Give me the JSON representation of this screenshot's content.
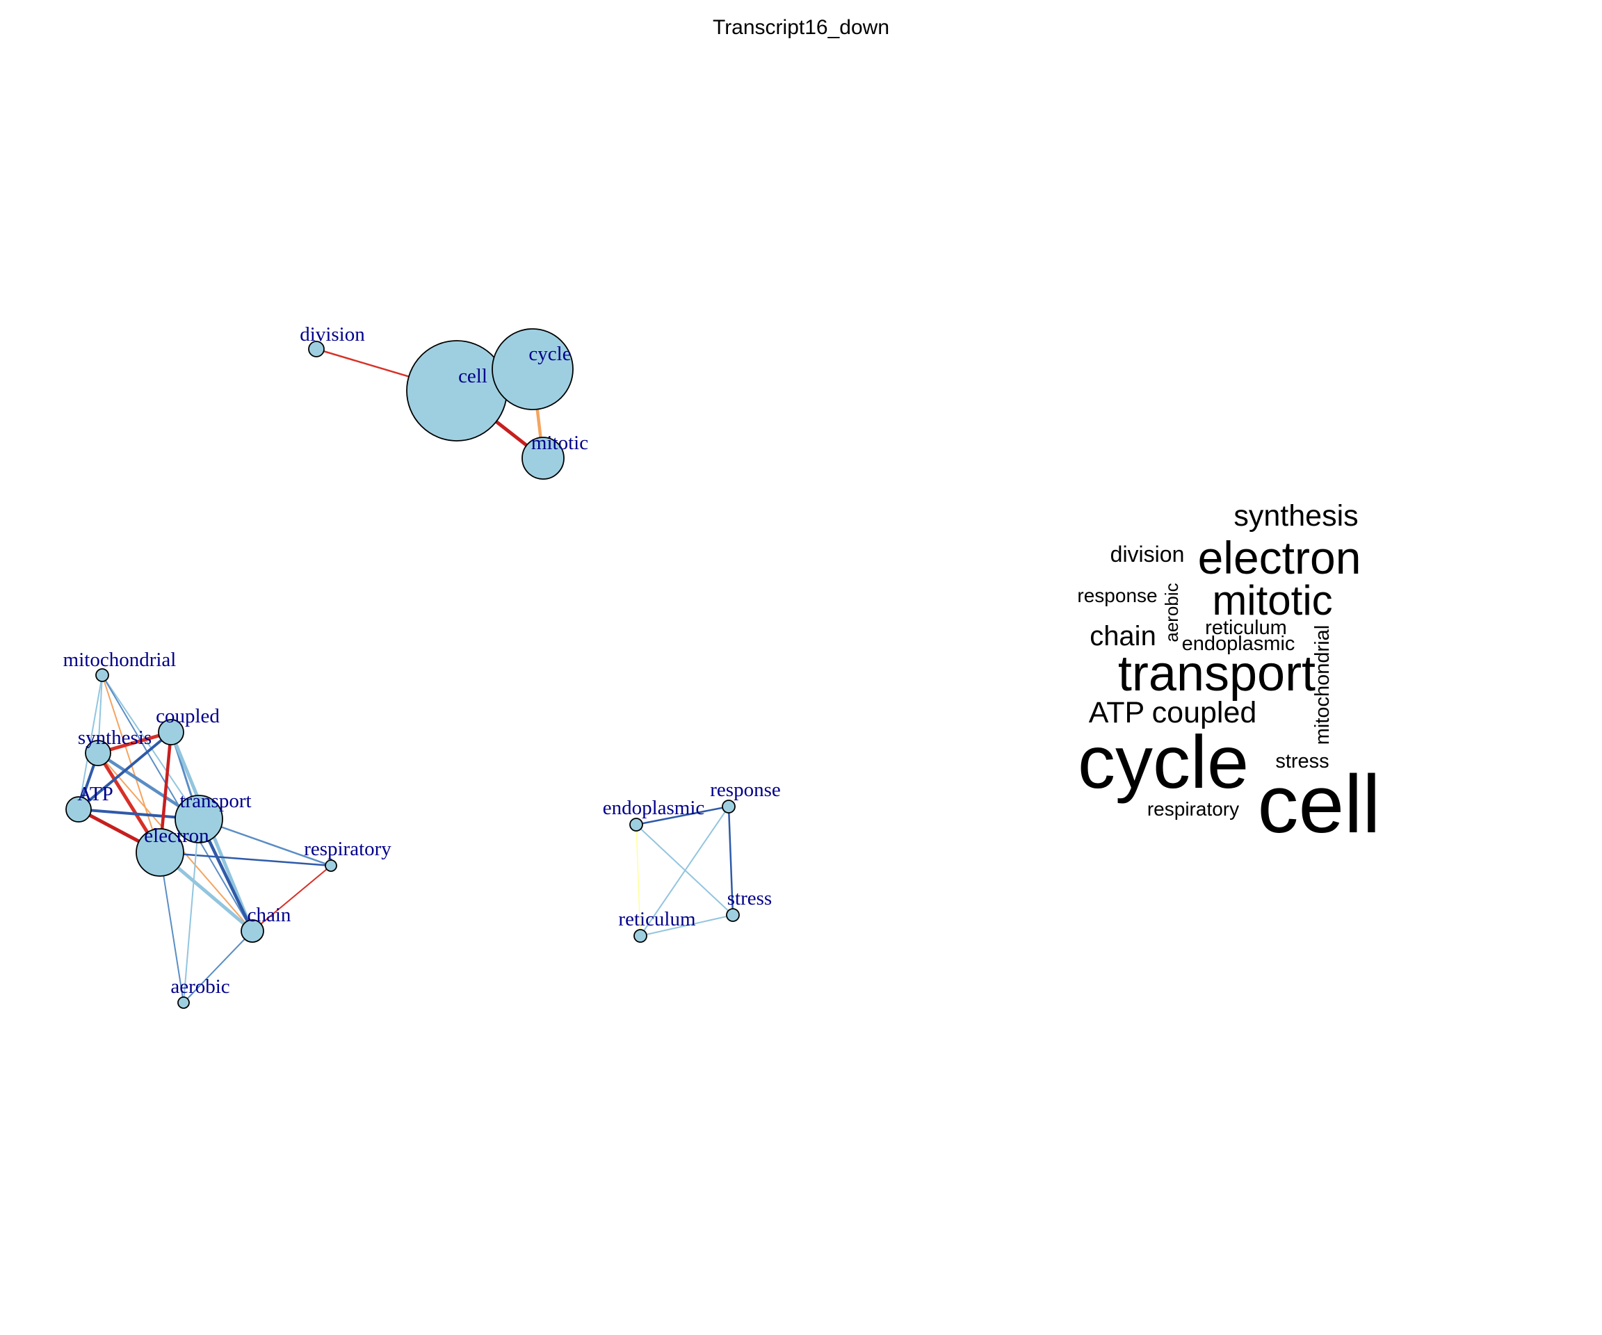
{
  "title": "Transcript16_down",
  "colors": {
    "node_fill": "#9ecfe0",
    "node_stroke": "#000000",
    "label": "#00008b",
    "edge_red": "#d73027",
    "edge_darkred": "#c81e1e",
    "edge_orange": "#f4a460",
    "edge_yellow": "#ffff99",
    "edge_lightblue": "#92c5de",
    "edge_midblue": "#5a8dc4",
    "edge_darkblue": "#2f5aa8"
  },
  "network": {
    "nodes": [
      {
        "id": "division",
        "label": "division"
      },
      {
        "id": "cell",
        "label": "cell"
      },
      {
        "id": "cycle",
        "label": "cycle"
      },
      {
        "id": "mitotic",
        "label": "mitotic"
      },
      {
        "id": "mitochondrial",
        "label": "mitochondrial"
      },
      {
        "id": "coupled",
        "label": "coupled"
      },
      {
        "id": "synthesis",
        "label": "synthesis"
      },
      {
        "id": "ATP",
        "label": "ATP"
      },
      {
        "id": "transport",
        "label": "transport"
      },
      {
        "id": "electron",
        "label": "electron"
      },
      {
        "id": "respiratory",
        "label": "respiratory"
      },
      {
        "id": "chain",
        "label": "chain"
      },
      {
        "id": "aerobic",
        "label": "aerobic"
      },
      {
        "id": "endoplasmic",
        "label": "endoplasmic"
      },
      {
        "id": "response",
        "label": "response"
      },
      {
        "id": "reticulum",
        "label": "reticulum"
      },
      {
        "id": "stress",
        "label": "stress"
      }
    ],
    "edges": [
      {
        "source": "division",
        "target": "cell",
        "color": "edge_red"
      },
      {
        "source": "cell",
        "target": "mitotic",
        "color": "edge_darkred"
      },
      {
        "source": "cycle",
        "target": "mitotic",
        "color": "edge_orange"
      },
      {
        "source": "mitochondrial",
        "target": "synthesis",
        "color": "edge_lightblue"
      },
      {
        "source": "mitochondrial",
        "target": "ATP",
        "color": "edge_lightblue"
      },
      {
        "source": "mitochondrial",
        "target": "transport",
        "color": "edge_lightblue"
      },
      {
        "source": "mitochondrial",
        "target": "electron",
        "color": "edge_orange"
      },
      {
        "source": "mitochondrial",
        "target": "chain",
        "color": "edge_midblue"
      },
      {
        "source": "synthesis",
        "target": "coupled",
        "color": "edge_red"
      },
      {
        "source": "synthesis",
        "target": "electron",
        "color": "edge_red"
      },
      {
        "source": "synthesis",
        "target": "transport",
        "color": "edge_midblue"
      },
      {
        "source": "synthesis",
        "target": "chain",
        "color": "edge_orange"
      },
      {
        "source": "ATP",
        "target": "coupled",
        "color": "edge_darkblue"
      },
      {
        "source": "ATP",
        "target": "synthesis",
        "color": "edge_darkblue"
      },
      {
        "source": "ATP",
        "target": "electron",
        "color": "edge_darkred"
      },
      {
        "source": "ATP",
        "target": "transport",
        "color": "edge_darkblue"
      },
      {
        "source": "coupled",
        "target": "electron",
        "color": "edge_darkred"
      },
      {
        "source": "coupled",
        "target": "transport",
        "color": "edge_midblue"
      },
      {
        "source": "coupled",
        "target": "chain",
        "color": "edge_lightblue"
      },
      {
        "source": "electron",
        "target": "transport",
        "color": "edge_lightblue"
      },
      {
        "source": "electron",
        "target": "chain",
        "color": "edge_lightblue"
      },
      {
        "source": "electron",
        "target": "respiratory",
        "color": "edge_darkblue"
      },
      {
        "source": "electron",
        "target": "aerobic",
        "color": "edge_midblue"
      },
      {
        "source": "transport",
        "target": "chain",
        "color": "edge_darkblue"
      },
      {
        "source": "transport",
        "target": "respiratory",
        "color": "edge_midblue"
      },
      {
        "source": "transport",
        "target": "aerobic",
        "color": "edge_lightblue"
      },
      {
        "source": "respiratory",
        "target": "chain",
        "color": "edge_red"
      },
      {
        "source": "chain",
        "target": "aerobic",
        "color": "edge_midblue"
      },
      {
        "source": "endoplasmic",
        "target": "response",
        "color": "edge_darkblue"
      },
      {
        "source": "endoplasmic",
        "target": "stress",
        "color": "edge_lightblue"
      },
      {
        "source": "endoplasmic",
        "target": "reticulum",
        "color": "edge_yellow"
      },
      {
        "source": "response",
        "target": "reticulum",
        "color": "edge_lightblue"
      },
      {
        "source": "response",
        "target": "stress",
        "color": "edge_darkblue"
      },
      {
        "source": "reticulum",
        "target": "stress",
        "color": "edge_lightblue"
      }
    ]
  },
  "wordcloud": {
    "words": [
      {
        "text": "synthesis"
      },
      {
        "text": "division"
      },
      {
        "text": "electron"
      },
      {
        "text": "response"
      },
      {
        "text": "aerobic"
      },
      {
        "text": "mitotic"
      },
      {
        "text": "chain"
      },
      {
        "text": "reticulum"
      },
      {
        "text": "endoplasmic"
      },
      {
        "text": "mitochondrial"
      },
      {
        "text": "transport"
      },
      {
        "text": "ATP"
      },
      {
        "text": "coupled"
      },
      {
        "text": "cycle"
      },
      {
        "text": "stress"
      },
      {
        "text": "respiratory"
      },
      {
        "text": "cell"
      }
    ]
  }
}
